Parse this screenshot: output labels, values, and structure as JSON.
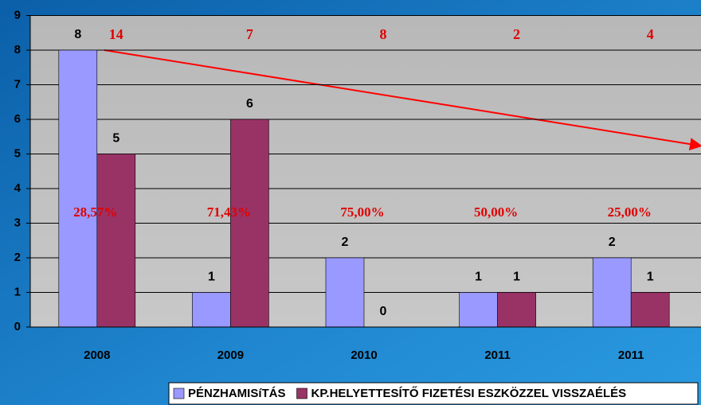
{
  "chart_data": {
    "type": "bar",
    "categories": [
      "2008",
      "2009",
      "2010",
      "2011",
      "2011"
    ],
    "series": [
      {
        "name": "PÉNZHAMISíTÁS",
        "color": "#9999ff",
        "values": [
          8,
          1,
          2,
          1,
          2
        ]
      },
      {
        "name": "KP.HELYETTESÍTŐ FIZETÉSI ESZKÖZZEL VISSZAÉLÉS",
        "color": "#993366",
        "values": [
          5,
          6,
          0,
          1,
          1
        ]
      }
    ],
    "totals": [
      14,
      7,
      8,
      2,
      4
    ],
    "percent_labels": [
      "28,57%",
      "71,43%",
      "75,00%",
      "50,00%",
      "25,00%"
    ],
    "ylim": [
      0,
      9
    ],
    "yticks": [
      0,
      1,
      2,
      3,
      4,
      5,
      6,
      7,
      8,
      9
    ],
    "grid": true,
    "legend": "bottom"
  }
}
